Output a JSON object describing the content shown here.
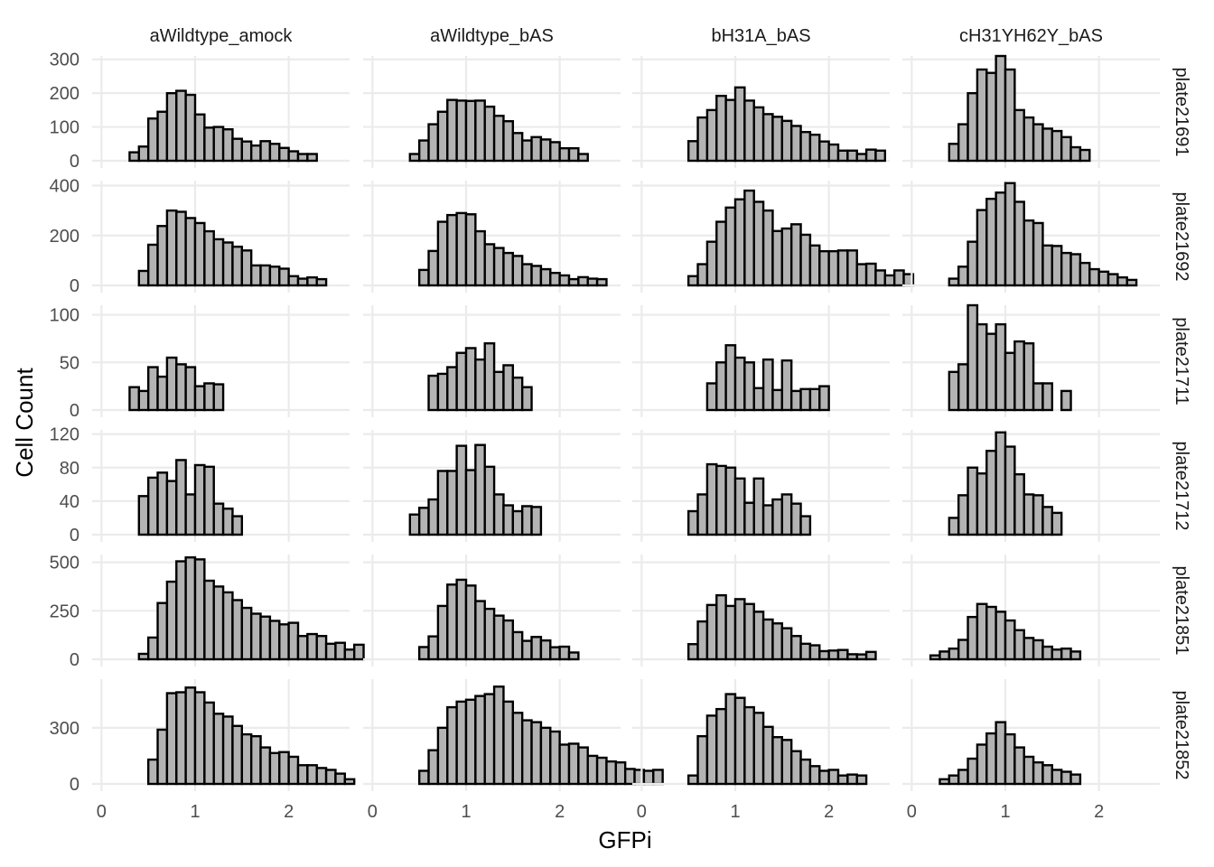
{
  "chart_data": {
    "type": "bar",
    "subtype": "faceted-histogram",
    "xlabel": "GFPi",
    "ylabel": "Cell Count",
    "columns": [
      "aWildtype_amock",
      "aWildtype_bAS",
      "bH31A_bAS",
      "cH31YH62Y_bAS"
    ],
    "rows": [
      "plate21691",
      "plate21692",
      "plate21711",
      "plate21712",
      "plate21851",
      "plate21852"
    ],
    "x_ticks": [
      0,
      1,
      2
    ],
    "xlim": [
      -0.1,
      2.65
    ],
    "bin_width": 0.1,
    "bar_fill": "#b3b3b3",
    "bar_stroke": "#000000",
    "grid": true,
    "panels": [
      {
        "row": "plate21691",
        "ylim": [
          0,
          310
        ],
        "yticks": [
          0,
          100,
          200,
          300
        ],
        "series": [
          {
            "column": "aWildtype_amock",
            "x_start": 0.3,
            "values": [
              25,
              42,
              125,
              145,
              200,
              207,
              195,
              137,
              98,
              100,
              93,
              65,
              57,
              45,
              58,
              50,
              38,
              28,
              20,
              20
            ]
          },
          {
            "column": "aWildtype_bAS",
            "x_start": 0.4,
            "values": [
              20,
              60,
              108,
              145,
              180,
              178,
              177,
              178,
              160,
              133,
              117,
              82,
              60,
              70,
              63,
              55,
              37,
              37,
              20
            ]
          },
          {
            "column": "bH31A_bAS",
            "x_start": 0.5,
            "values": [
              58,
              128,
              150,
              192,
              180,
              217,
              178,
              158,
              138,
              130,
              118,
              103,
              85,
              77,
              57,
              48,
              30,
              30,
              20,
              33,
              30
            ]
          },
          {
            "column": "cH31YH62Y_bAS",
            "x_start": 0.4,
            "values": [
              50,
              108,
              200,
              270,
              260,
              310,
              270,
              150,
              128,
              108,
              95,
              88,
              70,
              40,
              32
            ]
          }
        ]
      },
      {
        "row": "plate21692",
        "ylim": [
          0,
          420
        ],
        "yticks": [
          0,
          200,
          400
        ],
        "series": [
          {
            "column": "aWildtype_amock",
            "x_start": 0.4,
            "values": [
              58,
              163,
              238,
              300,
              295,
              270,
              250,
              217,
              185,
              172,
              155,
              140,
              80,
              80,
              75,
              67,
              37,
              27,
              32,
              25
            ]
          },
          {
            "column": "aWildtype_bAS",
            "x_start": 0.5,
            "values": [
              62,
              138,
              255,
              282,
              290,
              285,
              217,
              165,
              150,
              130,
              118,
              85,
              78,
              65,
              50,
              40,
              25,
              33,
              27,
              25
            ]
          },
          {
            "column": "bH31A_bAS",
            "x_start": 0.5,
            "values": [
              37,
              85,
              175,
              255,
              312,
              345,
              380,
              335,
              300,
              218,
              228,
              245,
              203,
              160,
              137,
              137,
              140,
              140,
              85,
              87,
              60,
              40,
              60,
              45
            ]
          },
          {
            "column": "cH31YH62Y_bAS",
            "x_start": 0.4,
            "values": [
              27,
              75,
              175,
              302,
              347,
              372,
              410,
              335,
              260,
              250,
              160,
              158,
              130,
              125,
              90,
              65,
              55,
              45,
              32,
              22
            ]
          }
        ]
      },
      {
        "row": "plate21711",
        "ylim": [
          0,
          110
        ],
        "yticks": [
          0,
          50,
          100
        ],
        "series": [
          {
            "column": "aWildtype_amock",
            "x_start": 0.3,
            "values": [
              24,
              20,
              45,
              35,
              55,
              48,
              45,
              25,
              28,
              27
            ]
          },
          {
            "column": "aWildtype_bAS",
            "x_start": 0.6,
            "values": [
              36,
              38,
              45,
              60,
              65,
              53,
              70,
              40,
              47,
              34,
              24
            ]
          },
          {
            "column": "bH31A_bAS",
            "x_start": 0.7,
            "values": [
              28,
              50,
              68,
              55,
              50,
              23,
              53,
              21,
              52,
              20,
              22,
              22,
              25
            ]
          },
          {
            "column": "cH31YH62Y_bAS",
            "x_start": 0.4,
            "values": [
              40,
              48,
              110,
              90,
              80,
              90,
              60,
              72,
              70,
              28,
              28,
              0,
              20
            ]
          }
        ]
      },
      {
        "row": "plate21712",
        "ylim": [
          0,
          125
        ],
        "yticks": [
          0,
          40,
          80,
          120
        ],
        "series": [
          {
            "column": "aWildtype_amock",
            "x_start": 0.4,
            "values": [
              46,
              68,
              74,
              64,
              89,
              48,
              83,
              81,
              37,
              31,
              22
            ]
          },
          {
            "column": "aWildtype_bAS",
            "x_start": 0.4,
            "values": [
              24,
              32,
              42,
              76,
              76,
              106,
              77,
              107,
              81,
              48,
              35,
              28,
              34,
              33
            ]
          },
          {
            "column": "bH31A_bAS",
            "x_start": 0.5,
            "values": [
              28,
              48,
              84,
              82,
              80,
              67,
              38,
              67,
              35,
              42,
              48,
              37,
              22
            ]
          },
          {
            "column": "cH31YH62Y_bAS",
            "x_start": 0.4,
            "values": [
              20,
              47,
              80,
              73,
              100,
              122,
              105,
              72,
              48,
              47,
              33,
              26
            ]
          }
        ]
      },
      {
        "row": "plate21851",
        "ylim": [
          0,
          540
        ],
        "yticks": [
          0,
          250,
          500
        ],
        "series": [
          {
            "column": "aWildtype_amock",
            "x_start": 0.4,
            "values": [
              28,
              112,
              290,
              400,
              505,
              525,
              515,
              405,
              375,
              345,
              305,
              265,
              235,
              220,
              198,
              180,
              188,
              120,
              130,
              120,
              80,
              85,
              50,
              75
            ]
          },
          {
            "column": "aWildtype_bAS",
            "x_start": 0.5,
            "values": [
              63,
              118,
              275,
              385,
              410,
              380,
              300,
              260,
              225,
              200,
              140,
              95,
              115,
              97,
              62,
              65,
              35
            ]
          },
          {
            "column": "bH31A_bAS",
            "x_start": 0.5,
            "values": [
              78,
              195,
              280,
              330,
              275,
              310,
              285,
              245,
              205,
              185,
              160,
              120,
              80,
              72,
              42,
              45,
              48,
              26,
              25,
              38
            ]
          },
          {
            "column": "cH31YH62Y_bAS",
            "x_start": 0.2,
            "values": [
              20,
              40,
              55,
              100,
              218,
              285,
              270,
              245,
              200,
              150,
              110,
              98,
              65,
              50,
              55,
              40
            ]
          }
        ]
      },
      {
        "row": "plate21852",
        "ylim": [
          0,
          560
        ],
        "yticks": [
          0,
          300
        ],
        "series": [
          {
            "column": "aWildtype_amock",
            "x_start": 0.5,
            "values": [
              130,
              290,
              485,
              490,
              515,
              490,
              435,
              375,
              360,
              310,
              265,
              255,
              195,
              165,
              170,
              145,
              100,
              100,
              85,
              75,
              55,
              25
            ]
          },
          {
            "column": "aWildtype_bAS",
            "x_start": 0.5,
            "values": [
              70,
              180,
              300,
              410,
              440,
              450,
              470,
              480,
              520,
              440,
              380,
              340,
              330,
              300,
              280,
              210,
              215,
              195,
              150,
              140,
              120,
              115,
              80,
              75,
              70,
              75
            ]
          },
          {
            "column": "bH31A_bAS",
            "x_start": 0.5,
            "values": [
              45,
              255,
              365,
              400,
              480,
              460,
              410,
              380,
              305,
              250,
              235,
              175,
              130,
              95,
              70,
              75,
              45,
              50,
              45
            ]
          },
          {
            "column": "cH31YH62Y_bAS",
            "x_start": 0.3,
            "values": [
              25,
              45,
              75,
              135,
              210,
              270,
              330,
              265,
              195,
              145,
              115,
              100,
              75,
              65,
              50
            ]
          }
        ]
      }
    ]
  }
}
